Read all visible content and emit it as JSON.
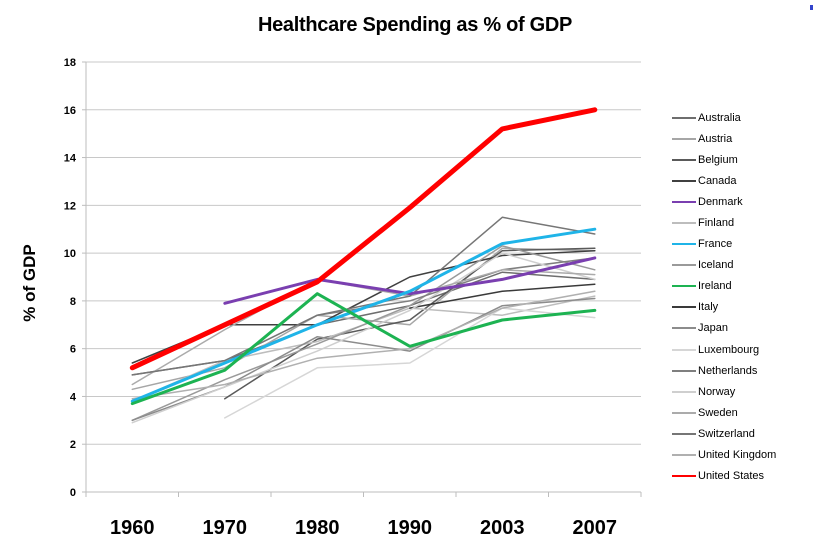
{
  "chart_data": {
    "type": "line",
    "title": "Healthcare Spending as % of GDP",
    "xlabel": "",
    "ylabel": "% of GDP",
    "categories": [
      "1960",
      "1970",
      "1980",
      "1990",
      "2003",
      "2007"
    ],
    "ylim": [
      0,
      18
    ],
    "yticks": [
      0,
      2,
      4,
      6,
      8,
      10,
      12,
      14,
      16,
      18
    ],
    "grid": true,
    "legend": "right",
    "series": [
      {
        "name": "Australia",
        "color": "#6e6e6e",
        "values": [
          4.9,
          5.5,
          7.0,
          7.8,
          9.2,
          8.9
        ]
      },
      {
        "name": "Austria",
        "color": "#a6a6a6",
        "values": [
          4.3,
          5.2,
          7.4,
          7.0,
          10.2,
          10.1
        ]
      },
      {
        "name": "Belgium",
        "color": "#5a5a5a",
        "values": [
          null,
          3.9,
          6.4,
          7.2,
          10.1,
          10.2
        ]
      },
      {
        "name": "Canada",
        "color": "#404040",
        "values": [
          5.4,
          7.0,
          7.0,
          9.0,
          9.9,
          10.1
        ]
      },
      {
        "name": "Denmark",
        "color": "#7a3fb0",
        "values": [
          null,
          7.9,
          8.9,
          8.3,
          8.9,
          9.8
        ]
      },
      {
        "name": "Finland",
        "color": "#bdbdbd",
        "values": [
          3.8,
          5.5,
          6.3,
          7.7,
          7.4,
          8.2
        ]
      },
      {
        "name": "France",
        "color": "#1fb4e8",
        "values": [
          3.8,
          5.4,
          7.0,
          8.4,
          10.4,
          11.0
        ]
      },
      {
        "name": "Iceland",
        "color": "#9a9a9a",
        "values": [
          3.0,
          4.7,
          6.2,
          7.8,
          10.3,
          9.3
        ]
      },
      {
        "name": "Ireland",
        "color": "#1db352",
        "values": [
          3.7,
          5.1,
          8.3,
          6.1,
          7.2,
          7.6
        ]
      },
      {
        "name": "Italy",
        "color": "#3a3a3a",
        "values": [
          null,
          null,
          null,
          7.7,
          8.4,
          8.7
        ]
      },
      {
        "name": "Japan",
        "color": "#8c8c8c",
        "values": [
          3.0,
          4.4,
          6.5,
          5.9,
          7.8,
          8.1
        ]
      },
      {
        "name": "Luxembourg",
        "color": "#d6d6d6",
        "values": [
          null,
          3.1,
          5.2,
          5.4,
          7.7,
          7.3
        ]
      },
      {
        "name": "Netherlands",
        "color": "#7f7f7f",
        "values": [
          null,
          null,
          7.4,
          8.0,
          9.3,
          9.8
        ]
      },
      {
        "name": "Norway",
        "color": "#cfcfcf",
        "values": [
          2.9,
          4.4,
          5.9,
          7.6,
          10.0,
          8.9
        ]
      },
      {
        "name": "Sweden",
        "color": "#ababab",
        "values": [
          4.5,
          6.8,
          8.9,
          8.2,
          9.3,
          9.1
        ]
      },
      {
        "name": "Switzerland",
        "color": "#767676",
        "values": [
          4.9,
          5.5,
          7.4,
          8.2,
          11.5,
          10.8
        ]
      },
      {
        "name": "United Kingdom",
        "color": "#b0b0b0",
        "values": [
          3.9,
          4.5,
          5.6,
          6.0,
          7.7,
          8.4
        ]
      },
      {
        "name": "United States",
        "color": "#ff0000",
        "values": [
          5.2,
          7.0,
          8.8,
          11.9,
          15.2,
          16.0
        ]
      }
    ]
  }
}
